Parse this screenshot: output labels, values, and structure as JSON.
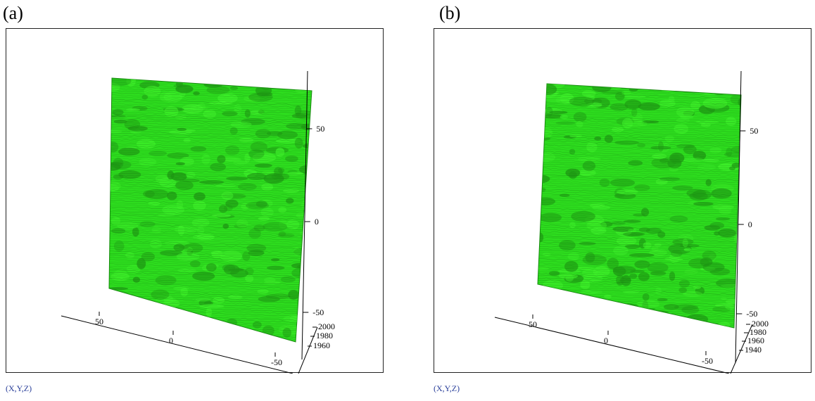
{
  "panels": [
    {
      "label": "(a)",
      "caption": "(X,Y,Z)",
      "surface_color": "#2ddc1e",
      "z_ticks": [
        "50",
        "0",
        "-50"
      ],
      "x_ticks": [
        "50",
        "0",
        "-50"
      ],
      "y_ticks": [
        "2000",
        "1980",
        "1960"
      ]
    },
    {
      "label": "(b)",
      "caption": "(X,Y,Z)",
      "surface_color": "#2ddc1e",
      "z_ticks": [
        "50",
        "0",
        "-50"
      ],
      "x_ticks": [
        "50",
        "0",
        "-50"
      ],
      "y_ticks": [
        "2000",
        "1980",
        "1960",
        "1940"
      ]
    }
  ]
}
